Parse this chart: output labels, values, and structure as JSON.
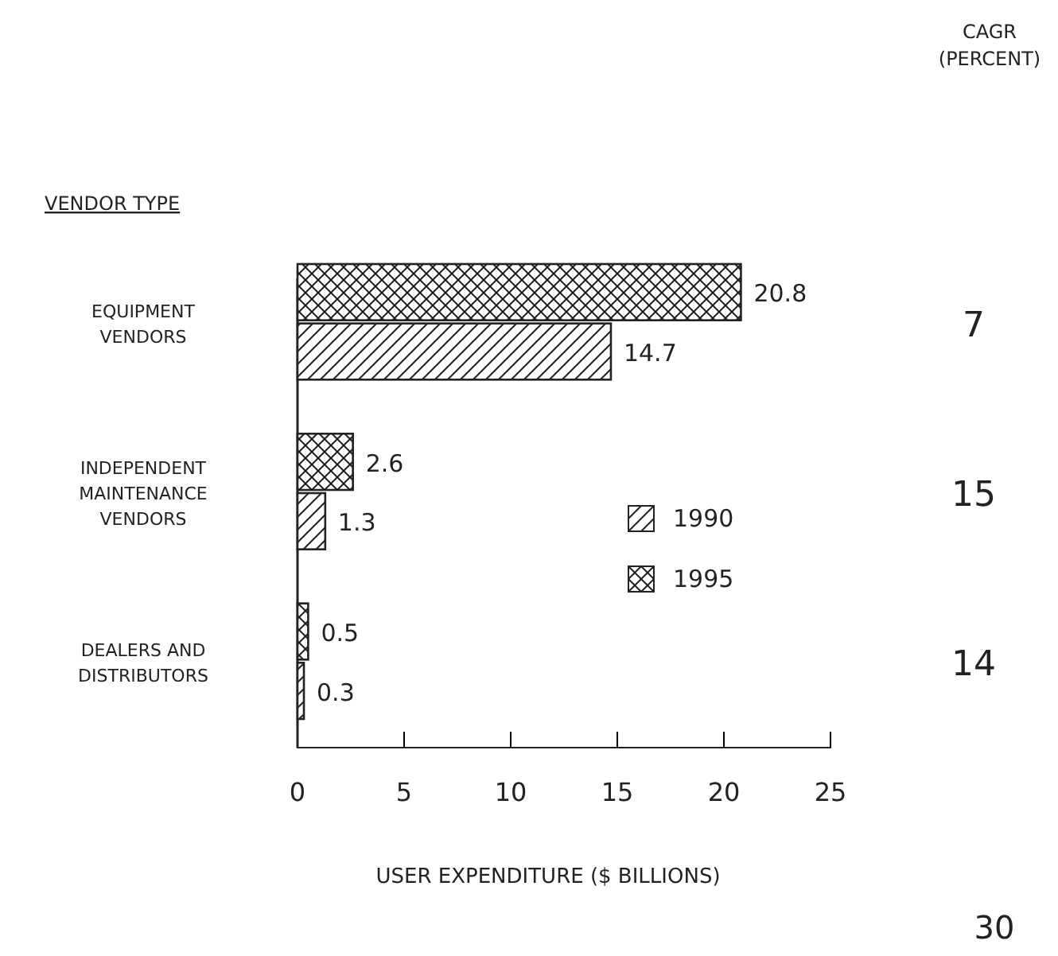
{
  "chart_data": {
    "type": "bar",
    "orientation": "horizontal",
    "ylabel": "VENDOR TYPE",
    "xlabel": "USER EXPENDITURE ($ BILLIONS)",
    "categories": [
      "EQUIPMENT VENDORS",
      "INDEPENDENT MAINTENANCE VENDORS",
      "DEALERS AND DISTRIBUTORS"
    ],
    "series": [
      {
        "name": "1990",
        "color": "#222222",
        "values": [
          14.7,
          1.3,
          0.3
        ]
      },
      {
        "name": "1995",
        "color": "#222222",
        "values": [
          20.8,
          2.6,
          0.5
        ]
      }
    ],
    "xlim": [
      0,
      25
    ],
    "xticks": [
      0,
      5,
      10,
      15,
      20,
      25
    ],
    "data_labels": true,
    "legend": "right",
    "grid": false,
    "annotations": [
      "CAGR (PERCENT)",
      "7",
      "15",
      "14",
      "30"
    ]
  }
}
